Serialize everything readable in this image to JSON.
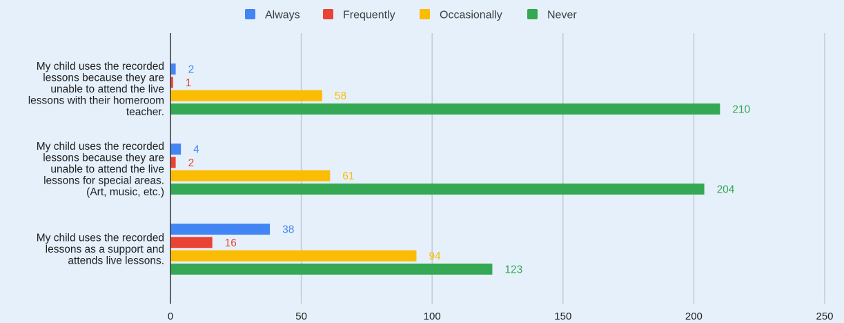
{
  "chart_data": {
    "type": "bar",
    "orientation": "horizontal",
    "categories": [
      [
        "My child uses the recorded",
        "lessons because they are",
        "unable to attend the live",
        "lessons with their homeroom",
        "teacher."
      ],
      [
        "My child uses the recorded",
        "lessons because they are",
        "unable to attend the live",
        "lessons for special areas.",
        "(Art, music, etc.)"
      ],
      [
        "My child uses the recorded",
        "lessons as a support and",
        "attends live lessons."
      ]
    ],
    "series": [
      {
        "name": "Always",
        "color": "#4285f4",
        "values": [
          2,
          4,
          38
        ]
      },
      {
        "name": "Frequently",
        "color": "#ea4335",
        "values": [
          1,
          2,
          16
        ]
      },
      {
        "name": "Occasionally",
        "color": "#fbbc04",
        "values": [
          58,
          61,
          94
        ]
      },
      {
        "name": "Never",
        "color": "#34a853",
        "values": [
          210,
          204,
          123
        ]
      }
    ],
    "xlim": [
      0,
      250
    ],
    "xticks": [
      0,
      50,
      100,
      150,
      200,
      250
    ],
    "xtick_labels": [
      "0",
      "50",
      "100",
      "150",
      "200",
      "250"
    ],
    "grid": "vertical",
    "legend_position": "top",
    "data_labels": true
  }
}
